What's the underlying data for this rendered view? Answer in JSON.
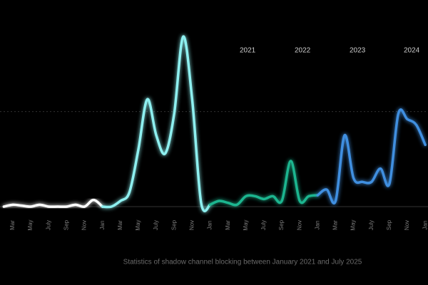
{
  "chart_data": {
    "type": "line",
    "subtitle": "Statistics of shadow channel blocking between January 2021 and July 2025",
    "categories": [
      null,
      "Mar",
      null,
      "May",
      null,
      "July",
      null,
      "Sep",
      null,
      "Nov",
      null,
      "Jan",
      null,
      "Mar",
      null,
      "May",
      null,
      "July",
      null,
      "Sep",
      null,
      "Nov",
      null,
      "Jan",
      null,
      "Mar",
      null,
      "May",
      null,
      "July",
      null,
      "Sep",
      null,
      "Nov",
      null,
      "Jan",
      null,
      "Mar",
      null,
      "May",
      null,
      "July",
      null,
      "Sep",
      null,
      "Nov",
      null,
      "Jan"
    ],
    "series": [
      {
        "name": "2021",
        "color": "#ffffff",
        "values": [
          0,
          2,
          1,
          0,
          2,
          0,
          0,
          0,
          2,
          0,
          7,
          0,
          null,
          null,
          null,
          null,
          null,
          null,
          null,
          null,
          null,
          null,
          null,
          null,
          null,
          null,
          null,
          null,
          null,
          null,
          null,
          null,
          null,
          null,
          null,
          null,
          null,
          null,
          null,
          null,
          null,
          null,
          null,
          null,
          null,
          null,
          null,
          null
        ]
      },
      {
        "name": "2022",
        "color": "#8ef0f0",
        "values": [
          null,
          null,
          null,
          null,
          null,
          null,
          null,
          null,
          null,
          null,
          null,
          0,
          0,
          6,
          15,
          60,
          113,
          75,
          56,
          98,
          179,
          113,
          4,
          2,
          null,
          null,
          null,
          null,
          null,
          null,
          null,
          null,
          null,
          null,
          null,
          null,
          null,
          null,
          null,
          null,
          null,
          null,
          null,
          null,
          null,
          null,
          null,
          null
        ]
      },
      {
        "name": "2023",
        "color": "#1fb58f",
        "values": [
          null,
          null,
          null,
          null,
          null,
          null,
          null,
          null,
          null,
          null,
          null,
          null,
          null,
          null,
          null,
          null,
          null,
          null,
          null,
          null,
          null,
          null,
          null,
          2,
          6,
          4,
          2,
          11,
          11,
          8,
          11,
          6,
          48,
          6,
          11,
          12,
          null,
          null,
          null,
          null,
          null,
          null,
          null,
          null,
          null,
          null,
          null,
          null
        ]
      },
      {
        "name": "2024",
        "color": "#3f8fe0",
        "values": [
          null,
          null,
          null,
          null,
          null,
          null,
          null,
          null,
          null,
          null,
          null,
          null,
          null,
          null,
          null,
          null,
          null,
          null,
          null,
          null,
          null,
          null,
          null,
          null,
          null,
          null,
          null,
          null,
          null,
          null,
          null,
          null,
          null,
          null,
          null,
          12,
          18,
          6,
          75,
          30,
          26,
          26,
          40,
          24,
          98,
          92,
          86,
          65
        ]
      }
    ],
    "ylim": [
      0,
      180
    ],
    "yticks": [
      0,
      100
    ],
    "grid": true,
    "legend": "top-right"
  }
}
